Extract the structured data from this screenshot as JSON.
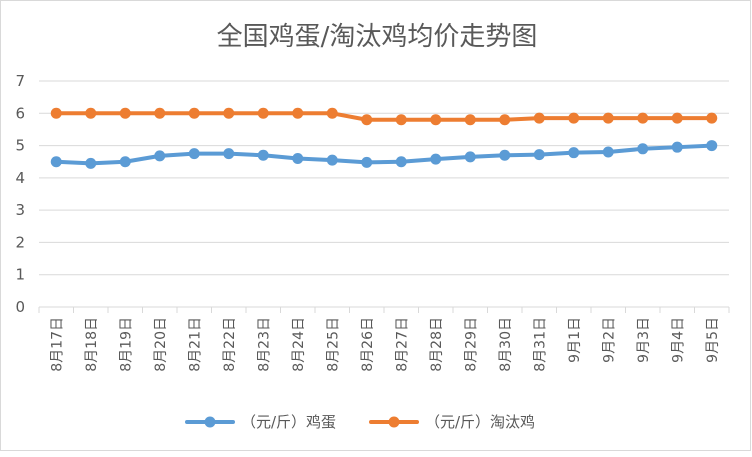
{
  "chart_data": {
    "type": "line",
    "title": "全国鸡蛋/淘汰鸡均价走势图",
    "categories": [
      "8月17日",
      "8月18日",
      "8月19日",
      "8月20日",
      "8月21日",
      "8月22日",
      "8月23日",
      "8月24日",
      "8月25日",
      "8月26日",
      "8月27日",
      "8月28日",
      "8月29日",
      "8月30日",
      "8月31日",
      "9月1日",
      "9月2日",
      "9月3日",
      "9月4日",
      "9月5日"
    ],
    "series": [
      {
        "name": "（元/斤）鸡蛋",
        "color": "#5b9bd5",
        "values": [
          4.5,
          4.45,
          4.5,
          4.68,
          4.75,
          4.75,
          4.7,
          4.6,
          4.55,
          4.48,
          4.5,
          4.58,
          4.65,
          4.7,
          4.72,
          4.78,
          4.8,
          4.9,
          4.95,
          5.0
        ]
      },
      {
        "name": "（元/斤）淘汰鸡",
        "color": "#ed7d31",
        "values": [
          6.0,
          6.0,
          6.0,
          6.0,
          6.0,
          6.0,
          6.0,
          6.0,
          6.0,
          5.8,
          5.8,
          5.8,
          5.8,
          5.8,
          5.85,
          5.85,
          5.85,
          5.85,
          5.85,
          5.85
        ]
      }
    ],
    "ylim": [
      0,
      7
    ],
    "yticks": [
      "0",
      "1",
      "2",
      "3",
      "4",
      "5",
      "6",
      "7"
    ],
    "grid": true,
    "legend_position": "bottom"
  }
}
